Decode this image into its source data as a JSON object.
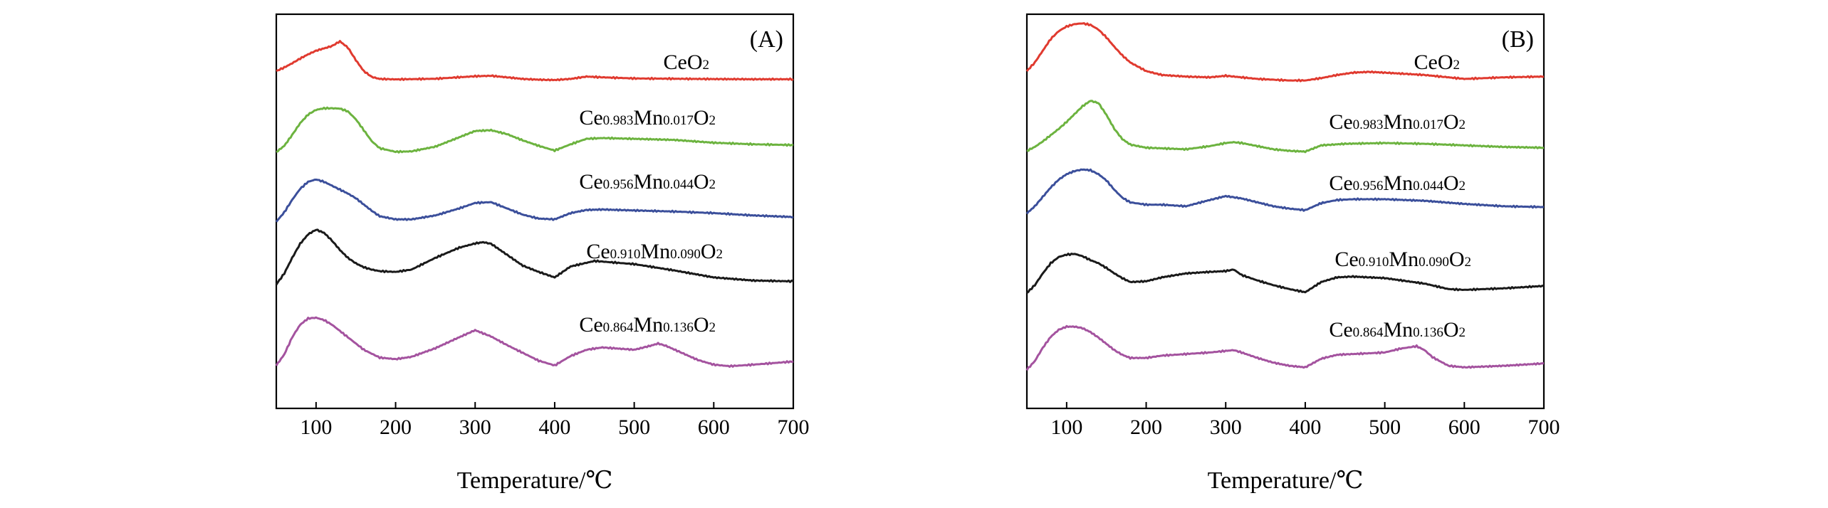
{
  "colors": {
    "red": "#e03a2f",
    "green": "#6cb33f",
    "blue": "#3b4f9b",
    "black": "#1a1a1a",
    "purple": "#a4539f"
  },
  "chart_data": [
    {
      "type": "line",
      "panel_label": "(A)",
      "xlabel": "Temperature/℃",
      "ylabel": "",
      "xlim": [
        50,
        700
      ],
      "xticks": [
        "100",
        "200",
        "300",
        "400",
        "500",
        "600",
        "700"
      ],
      "y_ticks_shown": false,
      "grid": false,
      "legend": "inline labels above each curve",
      "series": [
        {
          "name_main": "CeO",
          "name_sub": "2",
          "name_tail": "",
          "color": "red",
          "x": [
            50,
            60,
            70,
            80,
            90,
            100,
            110,
            120,
            130,
            140,
            150,
            160,
            170,
            180,
            200,
            250,
            300,
            320,
            340,
            360,
            380,
            400,
            420,
            440,
            460,
            500,
            550,
            600,
            650,
            700
          ],
          "y": [
            0.55,
            0.78,
            1.05,
            1.35,
            1.62,
            1.85,
            2.0,
            2.15,
            2.45,
            2.05,
            1.25,
            0.55,
            0.18,
            0.05,
            0.02,
            0.06,
            0.22,
            0.25,
            0.15,
            0.05,
            0.0,
            -0.02,
            0.05,
            0.2,
            0.15,
            0.08,
            0.06,
            0.04,
            0.03,
            0.03
          ]
        },
        {
          "name_main": "Ce",
          "name_sub": "0.983",
          "name_tail": "Mn",
          "name_sub2": "0.017",
          "name_end": "O",
          "name_sub3": "2",
          "color": "green",
          "x": [
            50,
            60,
            70,
            80,
            90,
            100,
            110,
            120,
            130,
            140,
            150,
            160,
            170,
            180,
            200,
            220,
            250,
            280,
            300,
            320,
            340,
            360,
            380,
            400,
            420,
            440,
            460,
            500,
            550,
            600,
            650,
            700
          ],
          "y": [
            0.1,
            0.5,
            1.2,
            1.95,
            2.5,
            2.8,
            2.9,
            2.9,
            2.88,
            2.7,
            2.2,
            1.5,
            0.8,
            0.35,
            0.12,
            0.15,
            0.45,
            1.05,
            1.45,
            1.5,
            1.25,
            0.85,
            0.5,
            0.2,
            0.6,
            0.95,
            1.0,
            0.95,
            0.88,
            0.7,
            0.6,
            0.55
          ]
        },
        {
          "name_main": "Ce",
          "name_sub": "0.956",
          "name_tail": "Mn",
          "name_sub2": "0.044",
          "name_end": "O",
          "name_sub3": "2",
          "color": "blue",
          "x": [
            50,
            60,
            70,
            80,
            90,
            100,
            110,
            120,
            130,
            140,
            150,
            160,
            170,
            180,
            200,
            220,
            250,
            280,
            300,
            320,
            340,
            360,
            380,
            400,
            420,
            440,
            460,
            500,
            550,
            600,
            650,
            700
          ],
          "y": [
            0.2,
            0.8,
            1.6,
            2.3,
            2.75,
            2.9,
            2.75,
            2.5,
            2.25,
            2.0,
            1.7,
            1.3,
            0.9,
            0.55,
            0.35,
            0.35,
            0.6,
            1.05,
            1.4,
            1.45,
            1.05,
            0.65,
            0.4,
            0.35,
            0.75,
            0.95,
            0.98,
            0.92,
            0.85,
            0.75,
            0.6,
            0.5
          ]
        },
        {
          "name_main": "Ce",
          "name_sub": "0.910",
          "name_tail": "Mn",
          "name_sub2": "0.090",
          "name_end": "O",
          "name_sub3": "2",
          "color": "black",
          "x": [
            50,
            60,
            70,
            80,
            90,
            100,
            110,
            120,
            130,
            140,
            150,
            160,
            170,
            180,
            200,
            220,
            250,
            280,
            300,
            310,
            320,
            340,
            360,
            380,
            400,
            420,
            450,
            500,
            550,
            600,
            650,
            700
          ],
          "y": [
            0.1,
            0.8,
            1.8,
            2.7,
            3.3,
            3.6,
            3.4,
            2.9,
            2.3,
            1.8,
            1.45,
            1.2,
            1.05,
            0.95,
            0.9,
            1.05,
            1.8,
            2.45,
            2.72,
            2.8,
            2.7,
            2.0,
            1.3,
            0.9,
            0.55,
            1.25,
            1.6,
            1.4,
            1.0,
            0.55,
            0.35,
            0.3
          ]
        },
        {
          "name_main": "Ce",
          "name_sub": "0.864",
          "name_tail": "Mn",
          "name_sub2": "0.136",
          "name_end": "O",
          "name_sub3": "2",
          "color": "purple",
          "x": [
            50,
            60,
            70,
            80,
            90,
            100,
            110,
            120,
            130,
            140,
            150,
            160,
            180,
            200,
            220,
            250,
            280,
            300,
            320,
            340,
            360,
            380,
            400,
            420,
            440,
            460,
            500,
            520,
            530,
            540,
            560,
            580,
            600,
            620,
            650,
            700
          ],
          "y": [
            0.2,
            0.9,
            2.0,
            2.8,
            3.2,
            3.25,
            3.1,
            2.8,
            2.4,
            2.0,
            1.6,
            1.2,
            0.7,
            0.6,
            0.75,
            1.3,
            2.0,
            2.45,
            2.05,
            1.5,
            1.0,
            0.5,
            0.2,
            0.8,
            1.2,
            1.35,
            1.2,
            1.45,
            1.6,
            1.45,
            1.0,
            0.55,
            0.25,
            0.15,
            0.25,
            0.45
          ]
        }
      ]
    },
    {
      "type": "line",
      "panel_label": "(B)",
      "xlabel": "Temperature/℃",
      "ylabel": "",
      "xlim": [
        50,
        700
      ],
      "xticks": [
        "100",
        "200",
        "300",
        "400",
        "500",
        "600",
        "700"
      ],
      "y_ticks_shown": false,
      "grid": false,
      "legend": "inline labels above each curve",
      "series": [
        {
          "name_main": "CeO",
          "name_sub": "2",
          "name_tail": "",
          "color": "red",
          "x": [
            50,
            60,
            70,
            80,
            90,
            100,
            110,
            120,
            130,
            140,
            150,
            160,
            170,
            180,
            200,
            220,
            250,
            280,
            300,
            320,
            340,
            360,
            380,
            400,
            420,
            440,
            460,
            480,
            500,
            550,
            600,
            650,
            700
          ],
          "y": [
            0.55,
            1.1,
            1.85,
            2.6,
            3.1,
            3.4,
            3.55,
            3.6,
            3.5,
            3.2,
            2.7,
            2.1,
            1.55,
            1.1,
            0.55,
            0.3,
            0.2,
            0.15,
            0.25,
            0.15,
            0.05,
            0.0,
            -0.05,
            -0.05,
            0.1,
            0.3,
            0.45,
            0.5,
            0.45,
            0.3,
            0.05,
            0.15,
            0.2
          ]
        },
        {
          "name_main": "Ce",
          "name_sub": "0.983",
          "name_tail": "Mn",
          "name_sub2": "0.017",
          "name_end": "O",
          "name_sub3": "2",
          "color": "green",
          "x": [
            50,
            60,
            70,
            80,
            90,
            100,
            110,
            120,
            130,
            140,
            150,
            160,
            170,
            180,
            200,
            250,
            280,
            300,
            310,
            320,
            340,
            360,
            380,
            400,
            420,
            450,
            500,
            550,
            600,
            650,
            700
          ],
          "y": [
            0.0,
            0.25,
            0.6,
            1.0,
            1.4,
            1.85,
            2.35,
            2.85,
            3.2,
            3.05,
            2.3,
            1.4,
            0.75,
            0.4,
            0.2,
            0.1,
            0.3,
            0.5,
            0.55,
            0.5,
            0.3,
            0.1,
            0.0,
            -0.05,
            0.35,
            0.45,
            0.5,
            0.45,
            0.35,
            0.25,
            0.2
          ]
        },
        {
          "name_main": "Ce",
          "name_sub": "0.956",
          "name_tail": "Mn",
          "name_sub2": "0.044",
          "name_end": "O",
          "name_sub3": "2",
          "color": "blue",
          "x": [
            50,
            60,
            70,
            80,
            90,
            100,
            110,
            120,
            130,
            140,
            150,
            160,
            170,
            180,
            200,
            220,
            250,
            280,
            300,
            320,
            340,
            360,
            380,
            400,
            420,
            440,
            460,
            500,
            550,
            600,
            650,
            700
          ],
          "y": [
            0.1,
            0.55,
            1.15,
            1.75,
            2.25,
            2.6,
            2.8,
            2.9,
            2.85,
            2.6,
            2.2,
            1.6,
            1.1,
            0.8,
            0.65,
            0.65,
            0.55,
            0.95,
            1.2,
            1.05,
            0.8,
            0.55,
            0.4,
            0.3,
            0.75,
            0.95,
            1.0,
            1.0,
            0.9,
            0.7,
            0.55,
            0.5
          ]
        },
        {
          "name_main": "Ce",
          "name_sub": "0.910",
          "name_tail": "Mn",
          "name_sub2": "0.090",
          "name_end": "O",
          "name_sub3": "2",
          "color": "black",
          "x": [
            50,
            60,
            70,
            80,
            90,
            100,
            110,
            120,
            130,
            140,
            150,
            160,
            170,
            180,
            200,
            220,
            250,
            280,
            300,
            310,
            320,
            340,
            360,
            380,
            400,
            420,
            440,
            460,
            500,
            550,
            580,
            600,
            650,
            700
          ],
          "y": [
            0.1,
            0.6,
            1.35,
            2.0,
            2.4,
            2.55,
            2.6,
            2.45,
            2.2,
            2.0,
            1.7,
            1.35,
            1.05,
            0.8,
            0.85,
            1.1,
            1.35,
            1.45,
            1.5,
            1.6,
            1.25,
            0.9,
            0.6,
            0.35,
            0.15,
            0.8,
            1.1,
            1.15,
            1.05,
            0.7,
            0.35,
            0.3,
            0.4,
            0.55
          ]
        },
        {
          "name_main": "Ce",
          "name_sub": "0.864",
          "name_tail": "Mn",
          "name_sub2": "0.136",
          "name_end": "O",
          "name_sub3": "2",
          "color": "purple",
          "x": [
            50,
            60,
            70,
            80,
            90,
            100,
            110,
            120,
            130,
            140,
            150,
            160,
            170,
            180,
            200,
            220,
            250,
            280,
            300,
            310,
            320,
            340,
            360,
            380,
            400,
            420,
            440,
            460,
            500,
            520,
            540,
            550,
            560,
            580,
            600,
            650,
            700
          ],
          "y": [
            0.2,
            0.75,
            1.6,
            2.3,
            2.75,
            2.95,
            2.95,
            2.85,
            2.6,
            2.25,
            1.85,
            1.45,
            1.15,
            0.95,
            0.95,
            1.1,
            1.2,
            1.3,
            1.4,
            1.45,
            1.3,
            0.95,
            0.65,
            0.45,
            0.35,
            0.9,
            1.15,
            1.2,
            1.3,
            1.55,
            1.7,
            1.45,
            1.0,
            0.45,
            0.35,
            0.45,
            0.6
          ]
        }
      ]
    }
  ]
}
